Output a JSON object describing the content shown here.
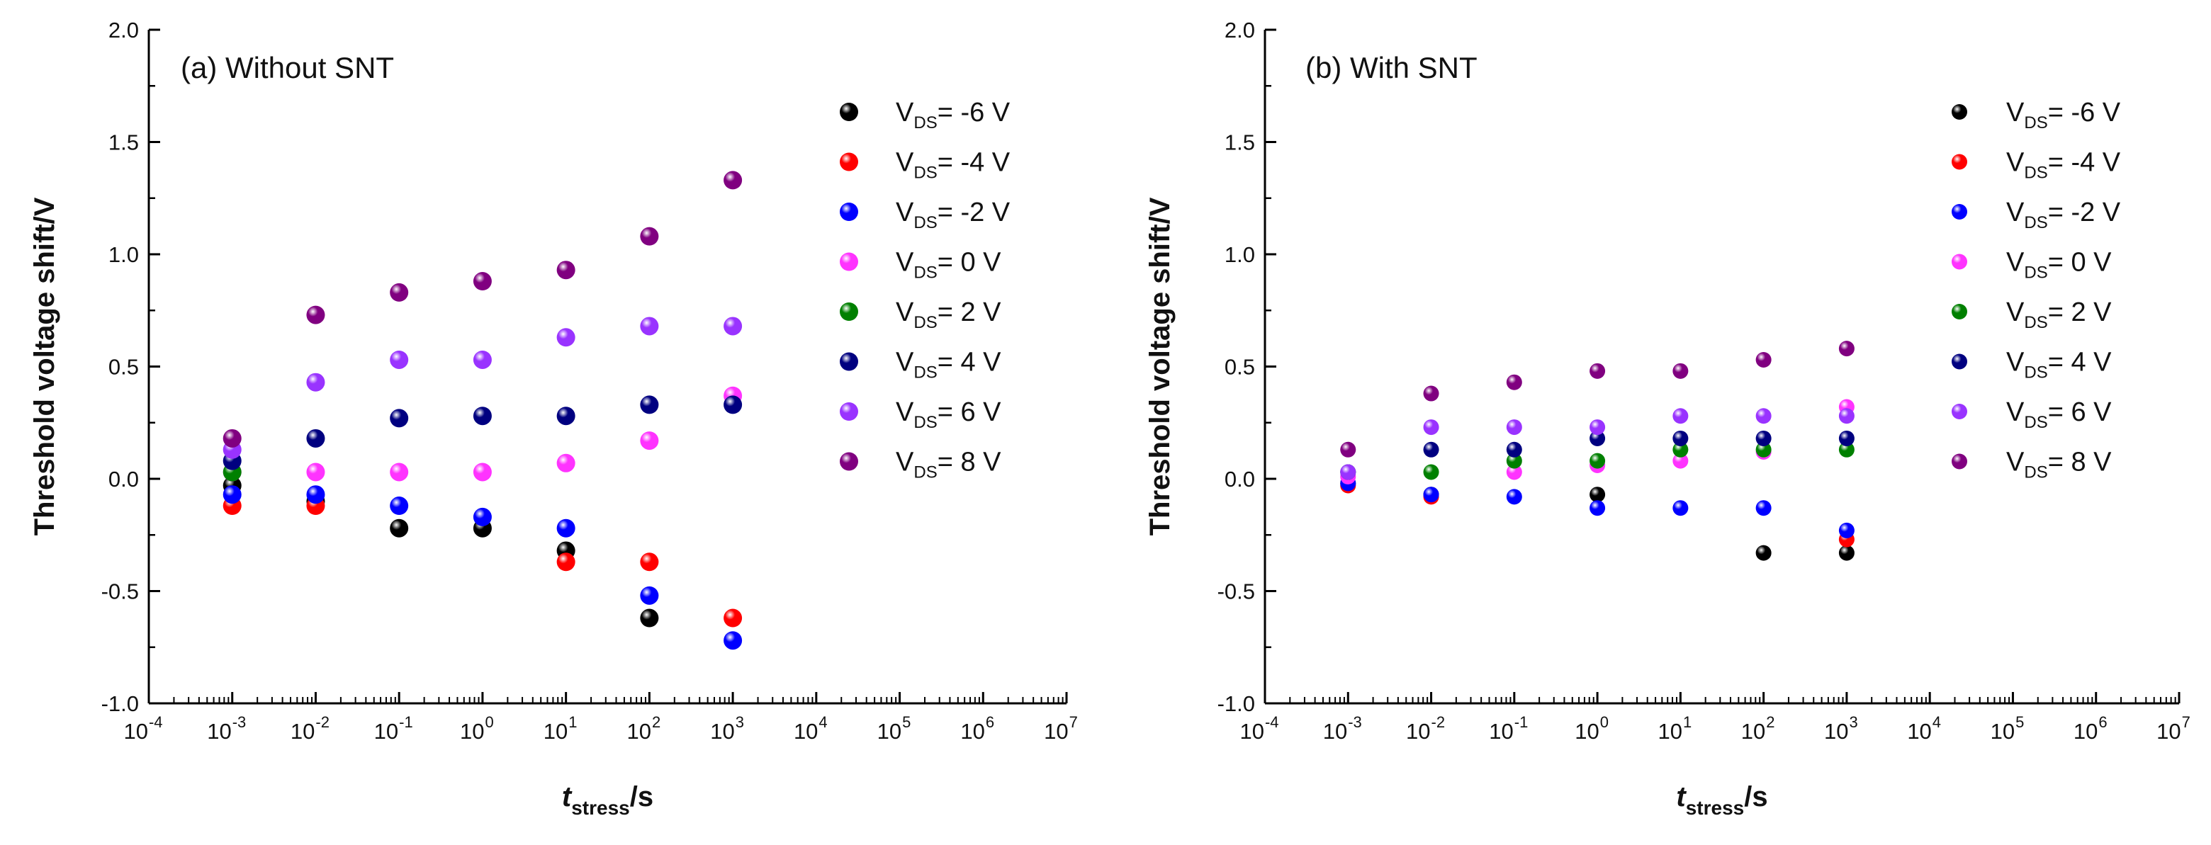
{
  "figure_title": "Threshold voltage shift vs stress time, without and with SNT",
  "chart_data": [
    {
      "type": "scatter",
      "title": "(a) Without SNT",
      "xlabel": {
        "main": "t",
        "sub": "stress",
        "unit": "/s"
      },
      "ylabel": "Threshold voltage shift/V",
      "xscale": "log",
      "xlim_exp": [
        -4,
        7
      ],
      "x_tick_exponents": [
        "-4",
        "-3",
        "-2",
        "-1",
        "0",
        "1",
        "2",
        "3",
        "4",
        "5",
        "6",
        "7"
      ],
      "ylim": [
        -1.0,
        2.0
      ],
      "y_ticks": [
        "-1.0",
        "-0.5",
        "0.0",
        "0.5",
        "1.0",
        "1.5",
        "2.0"
      ],
      "grid": false,
      "legend_position": "top-right",
      "series": [
        {
          "name": "V_DS= -6 V",
          "label_main": "V",
          "label_sub": "DS",
          "label_rest": "= -6 V",
          "color": "#000000",
          "x_exp": [
            -3,
            -2,
            -1,
            0,
            1,
            2
          ],
          "y": [
            -0.03,
            -0.1,
            -0.22,
            -0.22,
            -0.32,
            -0.62
          ]
        },
        {
          "name": "V_DS= -4 V",
          "label_main": "V",
          "label_sub": "DS",
          "label_rest": "= -4 V",
          "color": "#ff0000",
          "x_exp": [
            -3,
            -2,
            1,
            2,
            3
          ],
          "y": [
            -0.12,
            -0.12,
            -0.37,
            -0.37,
            -0.62
          ]
        },
        {
          "name": "V_DS= -2 V",
          "label_main": "V",
          "label_sub": "DS",
          "label_rest": "= -2 V",
          "color": "#0000ff",
          "x_exp": [
            -3,
            -2,
            -1,
            0,
            1,
            2,
            3
          ],
          "y": [
            -0.07,
            -0.07,
            -0.12,
            -0.17,
            -0.22,
            -0.52,
            -0.72
          ]
        },
        {
          "name": "V_DS= 0 V",
          "label_main": "V",
          "label_sub": "DS",
          "label_rest": "= 0 V",
          "color": "#ff33ff",
          "x_exp": [
            -3,
            -2,
            -1,
            0,
            1,
            2,
            3
          ],
          "y": [
            0.03,
            0.03,
            0.03,
            0.03,
            0.07,
            0.17,
            0.37
          ]
        },
        {
          "name": "V_DS= 2 V",
          "label_main": "V",
          "label_sub": "DS",
          "label_rest": "= 2 V",
          "color": "#008000",
          "x_exp": [
            -3
          ],
          "y": [
            0.03
          ]
        },
        {
          "name": "V_DS= 4 V",
          "label_main": "V",
          "label_sub": "DS",
          "label_rest": "= 4 V",
          "color": "#000080",
          "x_exp": [
            -3,
            -2,
            -1,
            0,
            1,
            2,
            3
          ],
          "y": [
            0.08,
            0.18,
            0.27,
            0.28,
            0.28,
            0.33,
            0.33
          ]
        },
        {
          "name": "V_DS= 6 V",
          "label_main": "V",
          "label_sub": "DS",
          "label_rest": "= 6 V",
          "color": "#9933ff",
          "x_exp": [
            -3,
            -2,
            -1,
            0,
            1,
            2,
            3
          ],
          "y": [
            0.13,
            0.43,
            0.53,
            0.53,
            0.63,
            0.68,
            0.68
          ]
        },
        {
          "name": "V_DS= 8 V",
          "label_main": "V",
          "label_sub": "DS",
          "label_rest": "= 8 V",
          "color": "#800080",
          "x_exp": [
            -3,
            -2,
            -1,
            0,
            1,
            2,
            3
          ],
          "y": [
            0.18,
            0.73,
            0.83,
            0.88,
            0.93,
            1.08,
            1.33
          ]
        }
      ]
    },
    {
      "type": "scatter",
      "title": "(b) With SNT",
      "xlabel": {
        "main": "t",
        "sub": "stress",
        "unit": "/s"
      },
      "ylabel": "Threshold voltage shift/V",
      "xscale": "log",
      "xlim_exp": [
        -4,
        7
      ],
      "x_tick_exponents": [
        "-4",
        "-3",
        "-2",
        "-1",
        "0",
        "1",
        "2",
        "3",
        "4",
        "5",
        "6",
        "7"
      ],
      "ylim": [
        -1.0,
        2.0
      ],
      "y_ticks": [
        "-1.0",
        "-0.5",
        "0.0",
        "0.5",
        "1.0",
        "1.5",
        "2.0"
      ],
      "grid": false,
      "legend_position": "top-right",
      "series": [
        {
          "name": "V_DS= -6 V",
          "label_main": "V",
          "label_sub": "DS",
          "label_rest": "= -6 V",
          "color": "#000000",
          "x_exp": [
            -3,
            -2,
            0,
            2,
            3
          ],
          "y": [
            -0.02,
            -0.07,
            -0.07,
            -0.33,
            -0.33
          ]
        },
        {
          "name": "V_DS= -4 V",
          "label_main": "V",
          "label_sub": "DS",
          "label_rest": "= -4 V",
          "color": "#ff0000",
          "x_exp": [
            -3,
            -2,
            3
          ],
          "y": [
            -0.03,
            -0.08,
            -0.27
          ]
        },
        {
          "name": "V_DS= -2 V",
          "label_main": "V",
          "label_sub": "DS",
          "label_rest": "= -2 V",
          "color": "#0000ff",
          "x_exp": [
            -3,
            -2,
            -1,
            0,
            1,
            2,
            3
          ],
          "y": [
            -0.02,
            -0.07,
            -0.08,
            -0.13,
            -0.13,
            -0.13,
            -0.23
          ]
        },
        {
          "name": "V_DS= 0 V",
          "label_main": "V",
          "label_sub": "DS",
          "label_rest": "= 0 V",
          "color": "#ff33ff",
          "x_exp": [
            -3,
            -1,
            0,
            1,
            2,
            3
          ],
          "y": [
            0.01,
            0.03,
            0.06,
            0.08,
            0.12,
            0.32
          ]
        },
        {
          "name": "V_DS= 2 V",
          "label_main": "V",
          "label_sub": "DS",
          "label_rest": "= 2 V",
          "color": "#008000",
          "x_exp": [
            -3,
            -2,
            -1,
            0,
            1,
            2,
            3
          ],
          "y": [
            0.03,
            0.03,
            0.08,
            0.08,
            0.13,
            0.13,
            0.13
          ]
        },
        {
          "name": "V_DS= 4 V",
          "label_main": "V",
          "label_sub": "DS",
          "label_rest": "= 4 V",
          "color": "#000080",
          "x_exp": [
            -3,
            -2,
            -1,
            0,
            1,
            2,
            3
          ],
          "y": [
            0.03,
            0.13,
            0.13,
            0.18,
            0.18,
            0.18,
            0.18
          ]
        },
        {
          "name": "V_DS= 6 V",
          "label_main": "V",
          "label_sub": "DS",
          "label_rest": "= 6 V",
          "color": "#9933ff",
          "x_exp": [
            -3,
            -2,
            -1,
            0,
            1,
            2,
            3
          ],
          "y": [
            0.03,
            0.23,
            0.23,
            0.23,
            0.28,
            0.28,
            0.28
          ]
        },
        {
          "name": "V_DS= 8 V",
          "label_main": "V",
          "label_sub": "DS",
          "label_rest": "= 8 V",
          "color": "#800080",
          "x_exp": [
            -3,
            -2,
            -1,
            0,
            1,
            2,
            3
          ],
          "y": [
            0.13,
            0.38,
            0.43,
            0.48,
            0.48,
            0.53,
            0.58
          ]
        }
      ]
    }
  ]
}
